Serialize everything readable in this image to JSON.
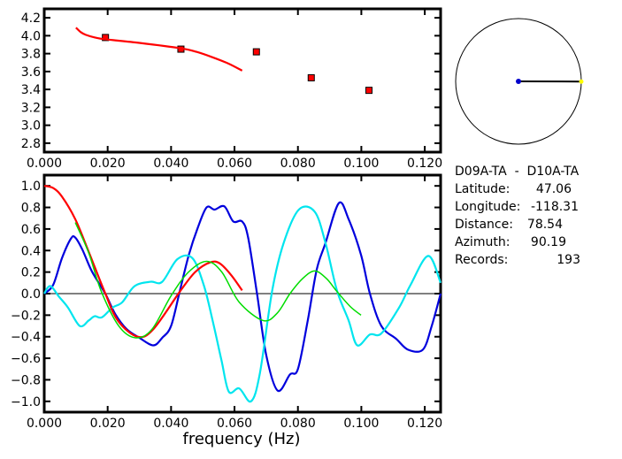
{
  "chart_data": [
    {
      "type": "scatter",
      "xlim": [
        0,
        0.125
      ],
      "ylim": [
        2.7,
        4.3
      ],
      "x_ticks": [
        "0.000",
        "0.020",
        "0.040",
        "0.060",
        "0.080",
        "0.100",
        "0.120"
      ],
      "y_ticks": [
        "2.8",
        "3.0",
        "3.2",
        "3.4",
        "3.6",
        "3.8",
        "4.0",
        "4.2"
      ],
      "grid": false,
      "series": [
        {
          "kind": "points",
          "color": "#ff0000",
          "x": [
            0.0193,
            0.0431,
            0.0669,
            0.0842,
            0.1024
          ],
          "y": [
            3.98,
            3.85,
            3.82,
            3.53,
            3.39
          ]
        },
        {
          "kind": "line",
          "color": "#ff0000",
          "x": [
            0.01,
            0.0115,
            0.0131,
            0.016,
            0.0193,
            0.03,
            0.043,
            0.048,
            0.053,
            0.058,
            0.0624
          ],
          "y": [
            4.09,
            4.04,
            4.01,
            3.98,
            3.96,
            3.92,
            3.86,
            3.82,
            3.76,
            3.69,
            3.61
          ]
        }
      ]
    },
    {
      "type": "line",
      "xlabel": "frequency (Hz)",
      "xlim": [
        0,
        0.125
      ],
      "ylim": [
        -1.1,
        1.1
      ],
      "x_ticks": [
        "0.000",
        "0.020",
        "0.040",
        "0.060",
        "0.080",
        "0.100",
        "0.120"
      ],
      "y_ticks": [
        "-1.0",
        "-0.8",
        "-0.6",
        "-0.4",
        "-0.2",
        "0.0",
        "0.2",
        "0.4",
        "0.6",
        "0.8",
        "1.0"
      ],
      "grid": false,
      "zero_line": true,
      "series": [
        {
          "color": "#0000dd",
          "x": [
            0,
            0.0028,
            0.0056,
            0.0084,
            0.0098,
            0.012,
            0.0148,
            0.0176,
            0.0196,
            0.0224,
            0.026,
            0.03,
            0.0344,
            0.0372,
            0.04,
            0.0428,
            0.0456,
            0.0484,
            0.0512,
            0.0537,
            0.0568,
            0.0596,
            0.0624,
            0.0643,
            0.0671,
            0.07,
            0.0736,
            0.0775,
            0.08,
            0.0831,
            0.0859,
            0.0887,
            0.0929,
            0.096,
            0.0999,
            0.1027,
            0.1063,
            0.111,
            0.1147,
            0.1194,
            0.1222,
            0.125
          ],
          "y": [
            0,
            0.08,
            0.33,
            0.51,
            0.52,
            0.41,
            0.22,
            0.08,
            -0.02,
            -0.19,
            -0.33,
            -0.41,
            -0.48,
            -0.41,
            -0.3,
            0.03,
            0.36,
            0.61,
            0.8,
            0.78,
            0.81,
            0.67,
            0.67,
            0.52,
            0,
            -0.57,
            -0.9,
            -0.75,
            -0.7,
            -0.25,
            0.22,
            0.47,
            0.84,
            0.69,
            0.36,
            0,
            -0.3,
            -0.42,
            -0.52,
            -0.52,
            -0.3,
            0
          ]
        },
        {
          "color": "#00e5ee",
          "x": [
            0,
            0.0019,
            0.0047,
            0.0075,
            0.0112,
            0.014,
            0.0159,
            0.0182,
            0.0215,
            0.0246,
            0.0285,
            0.0336,
            0.0372,
            0.042,
            0.0467,
            0.0503,
            0.0531,
            0.0559,
            0.0582,
            0.0615,
            0.0652,
            0.068,
            0.0719,
            0.0755,
            0.0803,
            0.0853,
            0.0887,
            0.0923,
            0.096,
            0.0987,
            0.1027,
            0.1063,
            0.1119,
            0.1155,
            0.1211,
            0.125
          ],
          "y": [
            0,
            0.07,
            -0.03,
            -0.13,
            -0.3,
            -0.25,
            -0.21,
            -0.22,
            -0.13,
            -0.08,
            0.07,
            0.11,
            0.11,
            0.32,
            0.33,
            0.08,
            -0.25,
            -0.62,
            -0.91,
            -0.88,
            -1.0,
            -0.74,
            0.03,
            0.47,
            0.78,
            0.76,
            0.47,
            0.03,
            -0.25,
            -0.48,
            -0.38,
            -0.37,
            -0.13,
            0.08,
            0.35,
            0.1
          ]
        },
        {
          "color": "#ff0000",
          "x": [
            0,
            0.0028,
            0.0056,
            0.0098,
            0.014,
            0.019,
            0.0232,
            0.0294,
            0.0344,
            0.0428,
            0.0476,
            0.0523,
            0.0554,
            0.059,
            0.0624
          ],
          "y": [
            1.0,
            0.98,
            0.9,
            0.69,
            0.39,
            0.02,
            -0.25,
            -0.4,
            -0.33,
            0.02,
            0.2,
            0.29,
            0.28,
            0.17,
            0.03
          ]
        },
        {
          "color": "#00dd00",
          "x": [
            0.0098,
            0.014,
            0.018,
            0.0235,
            0.0288,
            0.034,
            0.04,
            0.0455,
            0.0512,
            0.056,
            0.0615,
            0.069,
            0.0735,
            0.0775,
            0.0815,
            0.0853,
            0.089,
            0.0923,
            0.0965,
            0.0999
          ],
          "y": [
            0.66,
            0.38,
            0.02,
            -0.3,
            -0.41,
            -0.33,
            -0.02,
            0.2,
            0.3,
            0.2,
            -0.08,
            -0.25,
            -0.18,
            0,
            0.14,
            0.21,
            0.14,
            0.02,
            -0.12,
            -0.2
          ]
        }
      ]
    }
  ],
  "azimuth_dial": {
    "azimuth_deg": 90.19,
    "line_color": "#000000",
    "center_color": "#0000cc",
    "end_color": "#ffff00"
  },
  "info": {
    "title": "D09A-TA  -  D10A-TA",
    "rows": [
      {
        "label": "Latitude:",
        "value": "47.06"
      },
      {
        "label": "Longitude:",
        "value": "-118.31"
      },
      {
        "label": "Distance:",
        "value": "78.54"
      },
      {
        "label": "Azimuth:",
        "value": "90.19"
      },
      {
        "label": "Records:",
        "value": "193"
      }
    ]
  }
}
